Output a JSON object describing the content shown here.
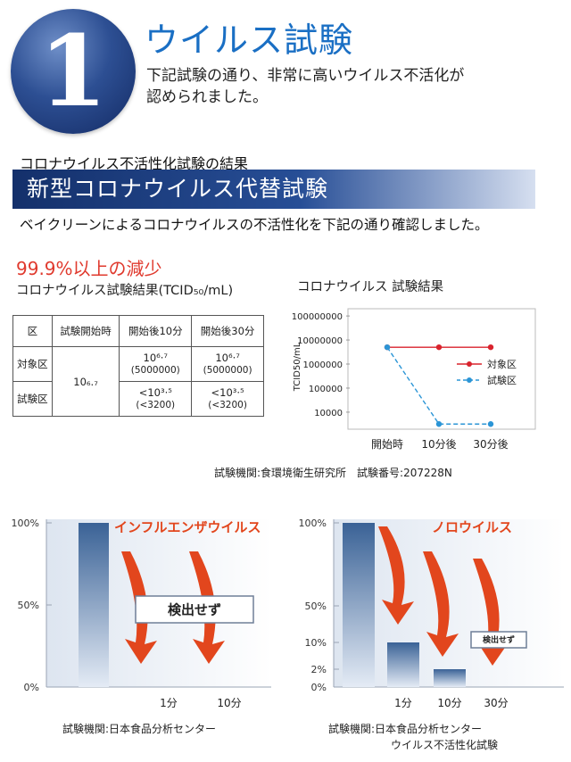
{
  "header": {
    "badge_number": "1",
    "title": "ウイルス試験",
    "intro_line1": "下記試験の通り、非常に高いウイルス不活化が",
    "intro_line2": "認められました。"
  },
  "section": {
    "sub_heading": "コロナウイルス不活性化試験の結果",
    "banner": "新型コロナウイルス代替試験",
    "confirm_text": "ベイクリーンによるコロナウイルスの不活性化を下記の通り確認しました。"
  },
  "highlight": "99.9%以上の減少",
  "table": {
    "caption": "コロナウイルス試験結果(TCID₅₀/mL)",
    "headers": [
      "区",
      "試験開始時",
      "開始後10分",
      "開始後30分"
    ],
    "rows": [
      {
        "label": "対象区",
        "cells": [
          {
            "main": "10⁶·⁷",
            "sub": "(5000000)"
          },
          {
            "main": "10⁶·⁷",
            "sub": "(5000000)"
          }
        ]
      },
      {
        "label": "試験区",
        "cells": [
          {
            "main": "<10³·⁵",
            "sub": "(<3200)"
          },
          {
            "main": "<10³·⁵",
            "sub": "(<3200)"
          }
        ]
      }
    ],
    "start_value": "10₆.₇"
  },
  "colors": {
    "title_blue": "#1a6fc4",
    "banner_dark": "#14306b",
    "highlight_red": "#e03a2e",
    "control_series": "#d9232d",
    "test_series": "#2b95d6",
    "bar_top": "#3a6296",
    "arrow_orange": "#e2461d"
  },
  "chart_data": [
    {
      "type": "line",
      "title": "コロナウイルス 試験結果",
      "ylabel": "TCID50/mL",
      "y_scale": "log",
      "ylim": [
        3000,
        200000000
      ],
      "y_ticks": [
        "100000000",
        "10000000",
        "1000000",
        "100000",
        "10000"
      ],
      "x": [
        "開始時",
        "10分後",
        "30分後"
      ],
      "series": [
        {
          "name": "対象区",
          "values": [
            5000000,
            5000000,
            5000000
          ],
          "color": "#d9232d",
          "style": "solid"
        },
        {
          "name": "試験区",
          "values": [
            5000000,
            3200,
            3200
          ],
          "color": "#2b95d6",
          "style": "dashed"
        }
      ],
      "legend": "right",
      "source": "試験機関:食環境衛生研究所　試験番号:207228N"
    },
    {
      "type": "bar",
      "title": "インフルエンザウイルス",
      "categories": [
        "",
        "1分",
        "10分"
      ],
      "values": [
        100,
        0,
        0
      ],
      "y_ticks": [
        "100%",
        "50%",
        "0%"
      ],
      "ylim": [
        0,
        100
      ],
      "annotation": "検出せず",
      "source": "試験機関:日本食品分析センター"
    },
    {
      "type": "bar",
      "title": "ノロウイルス",
      "categories": [
        "",
        "1分",
        "10分",
        "30分"
      ],
      "values": [
        100,
        10,
        2,
        0
      ],
      "y_ticks": [
        "100%",
        "50%",
        "10%",
        "2%",
        "0%"
      ],
      "ylim": [
        0,
        100
      ],
      "annotation": "検出せず",
      "source_line1": "試験機関:日本食品分析センター",
      "source_line2": "ウイルス不活性化試験"
    }
  ]
}
